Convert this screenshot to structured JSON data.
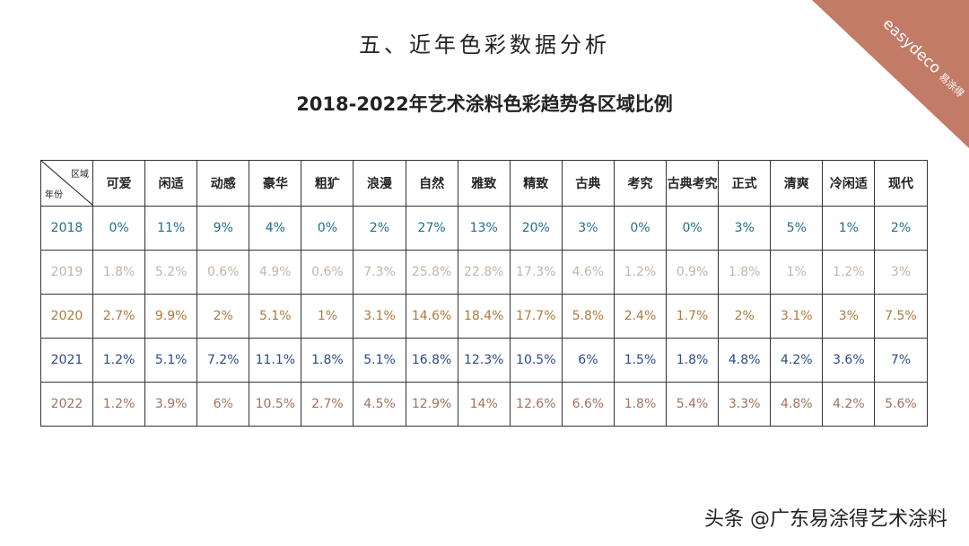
{
  "header": {
    "title": "五、近年色彩数据分析",
    "subtitle": "2018-2022年艺术涂料色彩趋势各区域比例"
  },
  "logo": {
    "brand": "easydeco",
    "chinese": "易涂得"
  },
  "table": {
    "corner": {
      "column_label": "区域",
      "row_label": "年份"
    },
    "columns": [
      "可爱",
      "闲适",
      "动感",
      "豪华",
      "粗犷",
      "浪漫",
      "自然",
      "雅致",
      "精致",
      "古典",
      "考究",
      "古典考究",
      "正式",
      "清爽",
      "冷闲适",
      "现代"
    ],
    "rows": [
      {
        "year": "2018",
        "color": "#1f6f8b",
        "cells": [
          "0%",
          "11%",
          "9%",
          "4%",
          "0%",
          "2%",
          "27%",
          "13%",
          "20%",
          "3%",
          "0%",
          "0%",
          "3%",
          "5%",
          "1%",
          "2%"
        ]
      },
      {
        "year": "2019",
        "color": "#c4b5a6",
        "cells": [
          "1.8%",
          "5.2%",
          "0.6%",
          "4.9%",
          "0.6%",
          "7.3%",
          "25.8%",
          "22.8%",
          "17.3%",
          "4.6%",
          "1.2%",
          "0.9%",
          "1.8%",
          "1%",
          "1.2%",
          "3%"
        ]
      },
      {
        "year": "2020",
        "color": "#b07a3c",
        "cells": [
          "2.7%",
          "9.9%",
          "2%",
          "5.1%",
          "1%",
          "3.1%",
          "14.6%",
          "18.4%",
          "17.7%",
          "5.8%",
          "2.4%",
          "1.7%",
          "2%",
          "3.1%",
          "3%",
          "7.5%"
        ]
      },
      {
        "year": "2021",
        "color": "#2b4a8c",
        "cells": [
          "1.2%",
          "5.1%",
          "7.2%",
          "11.1%",
          "1.8%",
          "5.1%",
          "16.8%",
          "12.3%",
          "10.5%",
          "6%",
          "1.5%",
          "1.8%",
          "4.8%",
          "4.2%",
          "3.6%",
          "7%"
        ]
      },
      {
        "year": "2022",
        "color": "#a8705a",
        "cells": [
          "1.2%",
          "3.9%",
          "6%",
          "10.5%",
          "2.7%",
          "4.5%",
          "12.9%",
          "14%",
          "12.6%",
          "6.6%",
          "1.8%",
          "5.4%",
          "3.3%",
          "4.8%",
          "4.2%",
          "5.6%"
        ]
      }
    ]
  },
  "footer": {
    "watermark": "头条 @广东易涂得艺术涂料"
  }
}
